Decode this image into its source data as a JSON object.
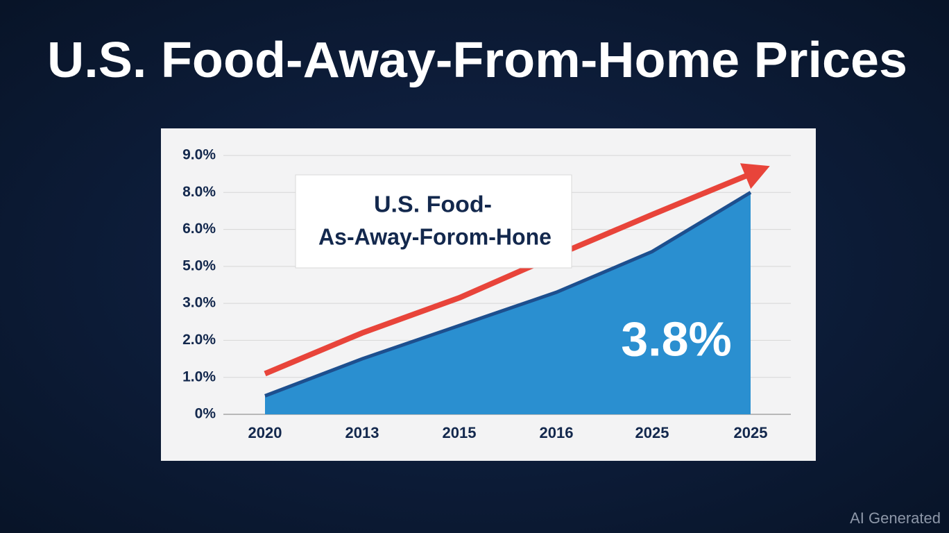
{
  "chart_data": {
    "type": "area",
    "title": "U.S. Food-Away-From-Home Prices",
    "annotation": [
      "U.S. Food-",
      "As-Away-Forom-Hone"
    ],
    "highlight": "3.8%",
    "watermark": "AI Generated",
    "categories": [
      "2020",
      "2013",
      "2015",
      "2016",
      "2025",
      "2025"
    ],
    "series": [
      {
        "style": "area",
        "color": "#2a8fd0",
        "edge": "#1d4f8e",
        "values": [
          0.5,
          1.5,
          2.4,
          3.6,
          5.4,
          8.0
        ]
      },
      {
        "style": "arrow",
        "color": "#e8443a",
        "values": [
          1.1,
          2.2,
          3.3,
          5.3,
          6.8,
          8.5
        ]
      }
    ],
    "ylim": [
      0,
      9
    ],
    "yticks": [
      {
        "value": 0,
        "label": "0%"
      },
      {
        "value": 1,
        "label": "1.0%"
      },
      {
        "value": 2,
        "label": "2.0%"
      },
      {
        "value": 3,
        "label": "3.0%"
      },
      {
        "value": 5,
        "label": "5.0%"
      },
      {
        "value": 6,
        "label": "6.0%"
      },
      {
        "value": 8,
        "label": "8.0%"
      },
      {
        "value": 9,
        "label": "9.0%"
      }
    ],
    "grid": true
  }
}
